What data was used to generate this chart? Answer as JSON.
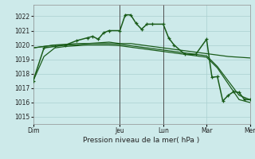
{
  "bg_color": "#cdeaea",
  "grid_color": "#aad0d0",
  "line_color": "#1a5c1a",
  "xlabel": "Pression niveau de la mer( hPa )",
  "ylim": [
    1014.5,
    1022.8
  ],
  "yticks": [
    1015,
    1016,
    1017,
    1018,
    1019,
    1020,
    1021,
    1022
  ],
  "xlim": [
    0,
    120
  ],
  "xtick_pos": [
    0,
    48,
    72,
    96,
    120
  ],
  "xtick_labels": [
    "Dim",
    "Jeu",
    "Lun",
    "Mar",
    "Mer"
  ],
  "vlines": [
    48,
    72
  ],
  "smooth1_x": [
    0,
    6,
    12,
    18,
    24,
    30,
    36,
    42,
    48,
    54,
    60,
    66,
    72,
    78,
    84,
    90,
    96,
    102,
    108,
    114,
    120
  ],
  "smooth1_y": [
    1019.8,
    1019.9,
    1020.0,
    1020.0,
    1020.0,
    1020.1,
    1020.15,
    1020.2,
    1020.1,
    1020.1,
    1020.0,
    1019.9,
    1019.8,
    1019.7,
    1019.6,
    1019.5,
    1019.4,
    1019.3,
    1019.2,
    1019.15,
    1019.1
  ],
  "smooth2_x": [
    0,
    6,
    12,
    18,
    24,
    30,
    36,
    42,
    48,
    54,
    60,
    66,
    72,
    78,
    84,
    90,
    96,
    102,
    108,
    114,
    120
  ],
  "smooth2_y": [
    1019.8,
    1019.9,
    1020.0,
    1020.05,
    1020.1,
    1020.1,
    1020.1,
    1020.1,
    1020.05,
    1019.95,
    1019.85,
    1019.75,
    1019.65,
    1019.55,
    1019.45,
    1019.35,
    1019.25,
    1018.5,
    1017.5,
    1016.5,
    1016.2
  ],
  "smooth3_x": [
    0,
    6,
    12,
    18,
    24,
    30,
    36,
    42,
    48,
    54,
    60,
    66,
    72,
    78,
    84,
    90,
    96,
    102,
    108,
    114,
    120
  ],
  "smooth3_y": [
    1017.5,
    1019.2,
    1019.8,
    1019.9,
    1019.95,
    1020.0,
    1020.0,
    1020.0,
    1019.95,
    1019.85,
    1019.75,
    1019.65,
    1019.55,
    1019.45,
    1019.35,
    1019.25,
    1019.15,
    1018.4,
    1017.3,
    1016.2,
    1016.0
  ],
  "main_x": [
    0,
    6,
    12,
    18,
    24,
    30,
    33,
    36,
    39,
    42,
    48,
    51,
    54,
    57,
    60,
    63,
    66,
    72,
    75,
    78,
    84,
    90,
    96,
    99,
    102,
    105,
    108,
    111,
    114,
    117,
    120
  ],
  "main_y": [
    1017.5,
    1019.8,
    1019.9,
    1020.0,
    1020.3,
    1020.5,
    1020.6,
    1020.4,
    1020.85,
    1021.0,
    1021.0,
    1022.1,
    1022.1,
    1021.5,
    1021.1,
    1021.45,
    1021.45,
    1021.45,
    1020.5,
    1020.0,
    1019.35,
    1019.35,
    1020.4,
    1017.75,
    1017.8,
    1016.1,
    1016.5,
    1016.75,
    1016.7,
    1016.2,
    1016.2
  ]
}
